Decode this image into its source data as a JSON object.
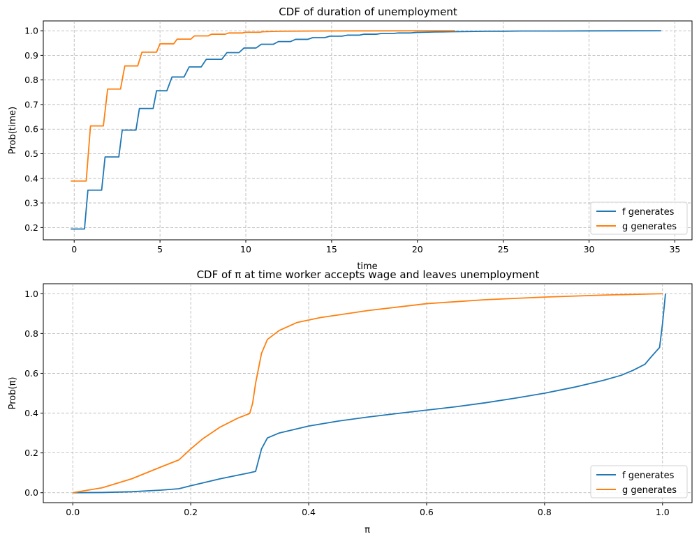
{
  "chart_data": [
    {
      "type": "line",
      "title": "CDF of duration of unemployment",
      "xlabel": "time",
      "ylabel": "Prob(time)",
      "xlim": [
        -1.8,
        36.0
      ],
      "ylim": [
        0.15,
        1.04
      ],
      "xticks": [
        0,
        5,
        10,
        15,
        20,
        25,
        30,
        35
      ],
      "xtick_labels": [
        "0",
        "5",
        "10",
        "15",
        "20",
        "25",
        "30",
        "35"
      ],
      "yticks": [
        0.2,
        0.3,
        0.4,
        0.5,
        0.6,
        0.7,
        0.8,
        0.9,
        1.0
      ],
      "ytick_labels": [
        "0.2",
        "0.3",
        "0.4",
        "0.5",
        "0.6",
        "0.7",
        "0.8",
        "0.9",
        "1.0"
      ],
      "grid": true,
      "legend_position": "lower-right",
      "series": [
        {
          "name": "f generates",
          "color": "#1f77b4",
          "points": [
            [
              -0.2,
              0.194
            ],
            [
              0.6,
              0.194
            ],
            [
              0.8,
              0.352
            ],
            [
              1.6,
              0.352
            ],
            [
              1.8,
              0.487
            ],
            [
              2.6,
              0.487
            ],
            [
              2.8,
              0.596
            ],
            [
              3.6,
              0.596
            ],
            [
              3.8,
              0.684
            ],
            [
              4.6,
              0.684
            ],
            [
              4.8,
              0.756
            ],
            [
              5.4,
              0.756
            ],
            [
              5.7,
              0.812
            ],
            [
              6.4,
              0.812
            ],
            [
              6.7,
              0.853
            ],
            [
              7.4,
              0.853
            ],
            [
              7.7,
              0.884
            ],
            [
              8.6,
              0.884
            ],
            [
              8.9,
              0.911
            ],
            [
              9.6,
              0.911
            ],
            [
              9.9,
              0.93
            ],
            [
              10.6,
              0.93
            ],
            [
              10.9,
              0.945
            ],
            [
              11.6,
              0.945
            ],
            [
              11.9,
              0.956
            ],
            [
              12.6,
              0.956
            ],
            [
              12.9,
              0.965
            ],
            [
              13.6,
              0.965
            ],
            [
              13.9,
              0.972
            ],
            [
              14.6,
              0.972
            ],
            [
              14.9,
              0.978
            ],
            [
              15.6,
              0.978
            ],
            [
              15.9,
              0.982
            ],
            [
              16.6,
              0.982
            ],
            [
              16.9,
              0.986
            ],
            [
              17.6,
              0.986
            ],
            [
              17.9,
              0.989
            ],
            [
              18.6,
              0.989
            ],
            [
              18.9,
              0.991
            ],
            [
              19.6,
              0.991
            ],
            [
              19.9,
              0.993
            ],
            [
              21.0,
              0.995
            ],
            [
              22.0,
              0.996
            ],
            [
              23.0,
              0.997
            ],
            [
              24.0,
              0.998
            ],
            [
              25.0,
              0.998
            ],
            [
              26.0,
              0.999
            ],
            [
              28.0,
              0.999
            ],
            [
              30.0,
              0.9995
            ],
            [
              34.2,
              1.0
            ]
          ]
        },
        {
          "name": "g generates",
          "color": "#ff7f0e",
          "points": [
            [
              -0.2,
              0.389
            ],
            [
              0.7,
              0.389
            ],
            [
              0.95,
              0.613
            ],
            [
              1.7,
              0.613
            ],
            [
              1.95,
              0.763
            ],
            [
              2.7,
              0.763
            ],
            [
              2.95,
              0.857
            ],
            [
              3.7,
              0.857
            ],
            [
              3.95,
              0.913
            ],
            [
              4.8,
              0.913
            ],
            [
              5.0,
              0.947
            ],
            [
              5.8,
              0.947
            ],
            [
              6.0,
              0.966
            ],
            [
              6.8,
              0.966
            ],
            [
              7.0,
              0.979
            ],
            [
              7.8,
              0.979
            ],
            [
              8.0,
              0.986
            ],
            [
              8.8,
              0.986
            ],
            [
              9.0,
              0.991
            ],
            [
              9.8,
              0.991
            ],
            [
              10.0,
              0.994
            ],
            [
              10.8,
              0.994
            ],
            [
              11.0,
              0.996
            ],
            [
              12.0,
              0.998
            ],
            [
              14.0,
              0.999
            ],
            [
              17.0,
              0.9995
            ],
            [
              22.2,
              1.0
            ]
          ]
        }
      ]
    },
    {
      "type": "line",
      "title": "CDF of π at time worker accepts wage and leaves unemployment",
      "xlabel": "π",
      "ylabel": "Prob(π)",
      "xlim": [
        -0.05,
        1.05
      ],
      "ylim": [
        -0.05,
        1.05
      ],
      "xticks": [
        0.0,
        0.2,
        0.4,
        0.6,
        0.8,
        1.0
      ],
      "xtick_labels": [
        "0.0",
        "0.2",
        "0.4",
        "0.6",
        "0.8",
        "1.0"
      ],
      "yticks": [
        0.0,
        0.2,
        0.4,
        0.6,
        0.8,
        1.0
      ],
      "ytick_labels": [
        "0.0",
        "0.2",
        "0.4",
        "0.6",
        "0.8",
        "1.0"
      ],
      "grid": true,
      "legend_position": "lower-right",
      "series": [
        {
          "name": "f generates",
          "color": "#1f77b4",
          "points": [
            [
              0.0,
              0.0
            ],
            [
              0.05,
              0.001
            ],
            [
              0.1,
              0.005
            ],
            [
              0.15,
              0.013
            ],
            [
              0.18,
              0.02
            ],
            [
              0.2,
              0.035
            ],
            [
              0.25,
              0.07
            ],
            [
              0.3,
              0.1
            ],
            [
              0.31,
              0.107
            ],
            [
              0.32,
              0.22
            ],
            [
              0.33,
              0.275
            ],
            [
              0.35,
              0.3
            ],
            [
              0.4,
              0.335
            ],
            [
              0.45,
              0.36
            ],
            [
              0.5,
              0.38
            ],
            [
              0.55,
              0.398
            ],
            [
              0.6,
              0.415
            ],
            [
              0.65,
              0.432
            ],
            [
              0.7,
              0.452
            ],
            [
              0.75,
              0.475
            ],
            [
              0.8,
              0.5
            ],
            [
              0.85,
              0.53
            ],
            [
              0.9,
              0.565
            ],
            [
              0.93,
              0.59
            ],
            [
              0.95,
              0.615
            ],
            [
              0.97,
              0.645
            ],
            [
              0.98,
              0.68
            ],
            [
              0.995,
              0.73
            ],
            [
              1.0,
              0.85
            ],
            [
              1.005,
              1.0
            ]
          ]
        },
        {
          "name": "g generates",
          "color": "#ff7f0e",
          "points": [
            [
              0.0,
              0.0
            ],
            [
              0.05,
              0.025
            ],
            [
              0.1,
              0.07
            ],
            [
              0.15,
              0.13
            ],
            [
              0.18,
              0.165
            ],
            [
              0.2,
              0.22
            ],
            [
              0.22,
              0.27
            ],
            [
              0.25,
              0.33
            ],
            [
              0.28,
              0.375
            ],
            [
              0.3,
              0.398
            ],
            [
              0.305,
              0.45
            ],
            [
              0.31,
              0.55
            ],
            [
              0.32,
              0.7
            ],
            [
              0.33,
              0.77
            ],
            [
              0.35,
              0.815
            ],
            [
              0.38,
              0.855
            ],
            [
              0.42,
              0.88
            ],
            [
              0.5,
              0.915
            ],
            [
              0.6,
              0.95
            ],
            [
              0.7,
              0.97
            ],
            [
              0.8,
              0.983
            ],
            [
              0.9,
              0.993
            ],
            [
              1.0,
              1.0
            ]
          ]
        }
      ]
    }
  ]
}
